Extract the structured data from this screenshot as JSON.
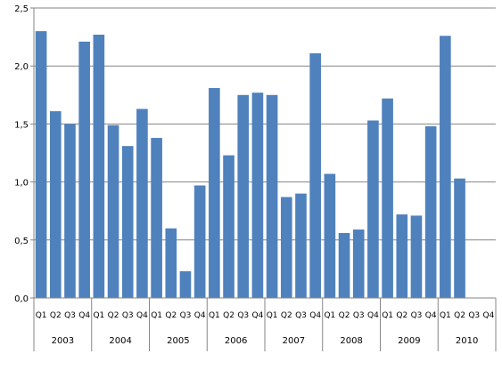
{
  "chart_data": {
    "type": "bar",
    "title": "",
    "xlabel": "",
    "ylabel": "",
    "ylim": [
      0,
      2.5
    ],
    "yticks": [
      "0,0",
      "0,5",
      "1,0",
      "1,5",
      "2,0",
      "2,5"
    ],
    "yticks_values": [
      0,
      0.5,
      1.0,
      1.5,
      2.0,
      2.5
    ],
    "grid": true,
    "legend": "none",
    "bar_color": "#4F81BD",
    "years": [
      "2003",
      "2004",
      "2005",
      "2006",
      "2007",
      "2008",
      "2009",
      "2010"
    ],
    "quarters": [
      "Q1",
      "Q2",
      "Q3",
      "Q4"
    ],
    "categories": [
      "2003 Q1",
      "2003 Q2",
      "2003 Q3",
      "2003 Q4",
      "2004 Q1",
      "2004 Q2",
      "2004 Q3",
      "2004 Q4",
      "2005 Q1",
      "2005 Q2",
      "2005 Q3",
      "2005 Q4",
      "2006 Q1",
      "2006 Q2",
      "2006 Q3",
      "2006 Q4",
      "2007 Q1",
      "2007 Q2",
      "2007 Q3",
      "2007 Q4",
      "2008 Q1",
      "2008 Q2",
      "2008 Q3",
      "2008 Q4",
      "2009 Q1",
      "2009 Q2",
      "2009 Q3",
      "2009 Q4",
      "2010 Q1",
      "2010 Q2",
      "2010 Q3",
      "2010 Q4"
    ],
    "values": [
      2.3,
      1.61,
      1.5,
      2.21,
      2.27,
      1.49,
      1.31,
      1.63,
      1.38,
      0.6,
      0.23,
      0.97,
      1.81,
      1.23,
      1.75,
      1.77,
      1.75,
      0.87,
      0.9,
      2.11,
      1.07,
      0.56,
      0.59,
      1.53,
      1.72,
      0.72,
      0.71,
      1.48,
      2.26,
      1.03,
      null,
      null
    ]
  }
}
